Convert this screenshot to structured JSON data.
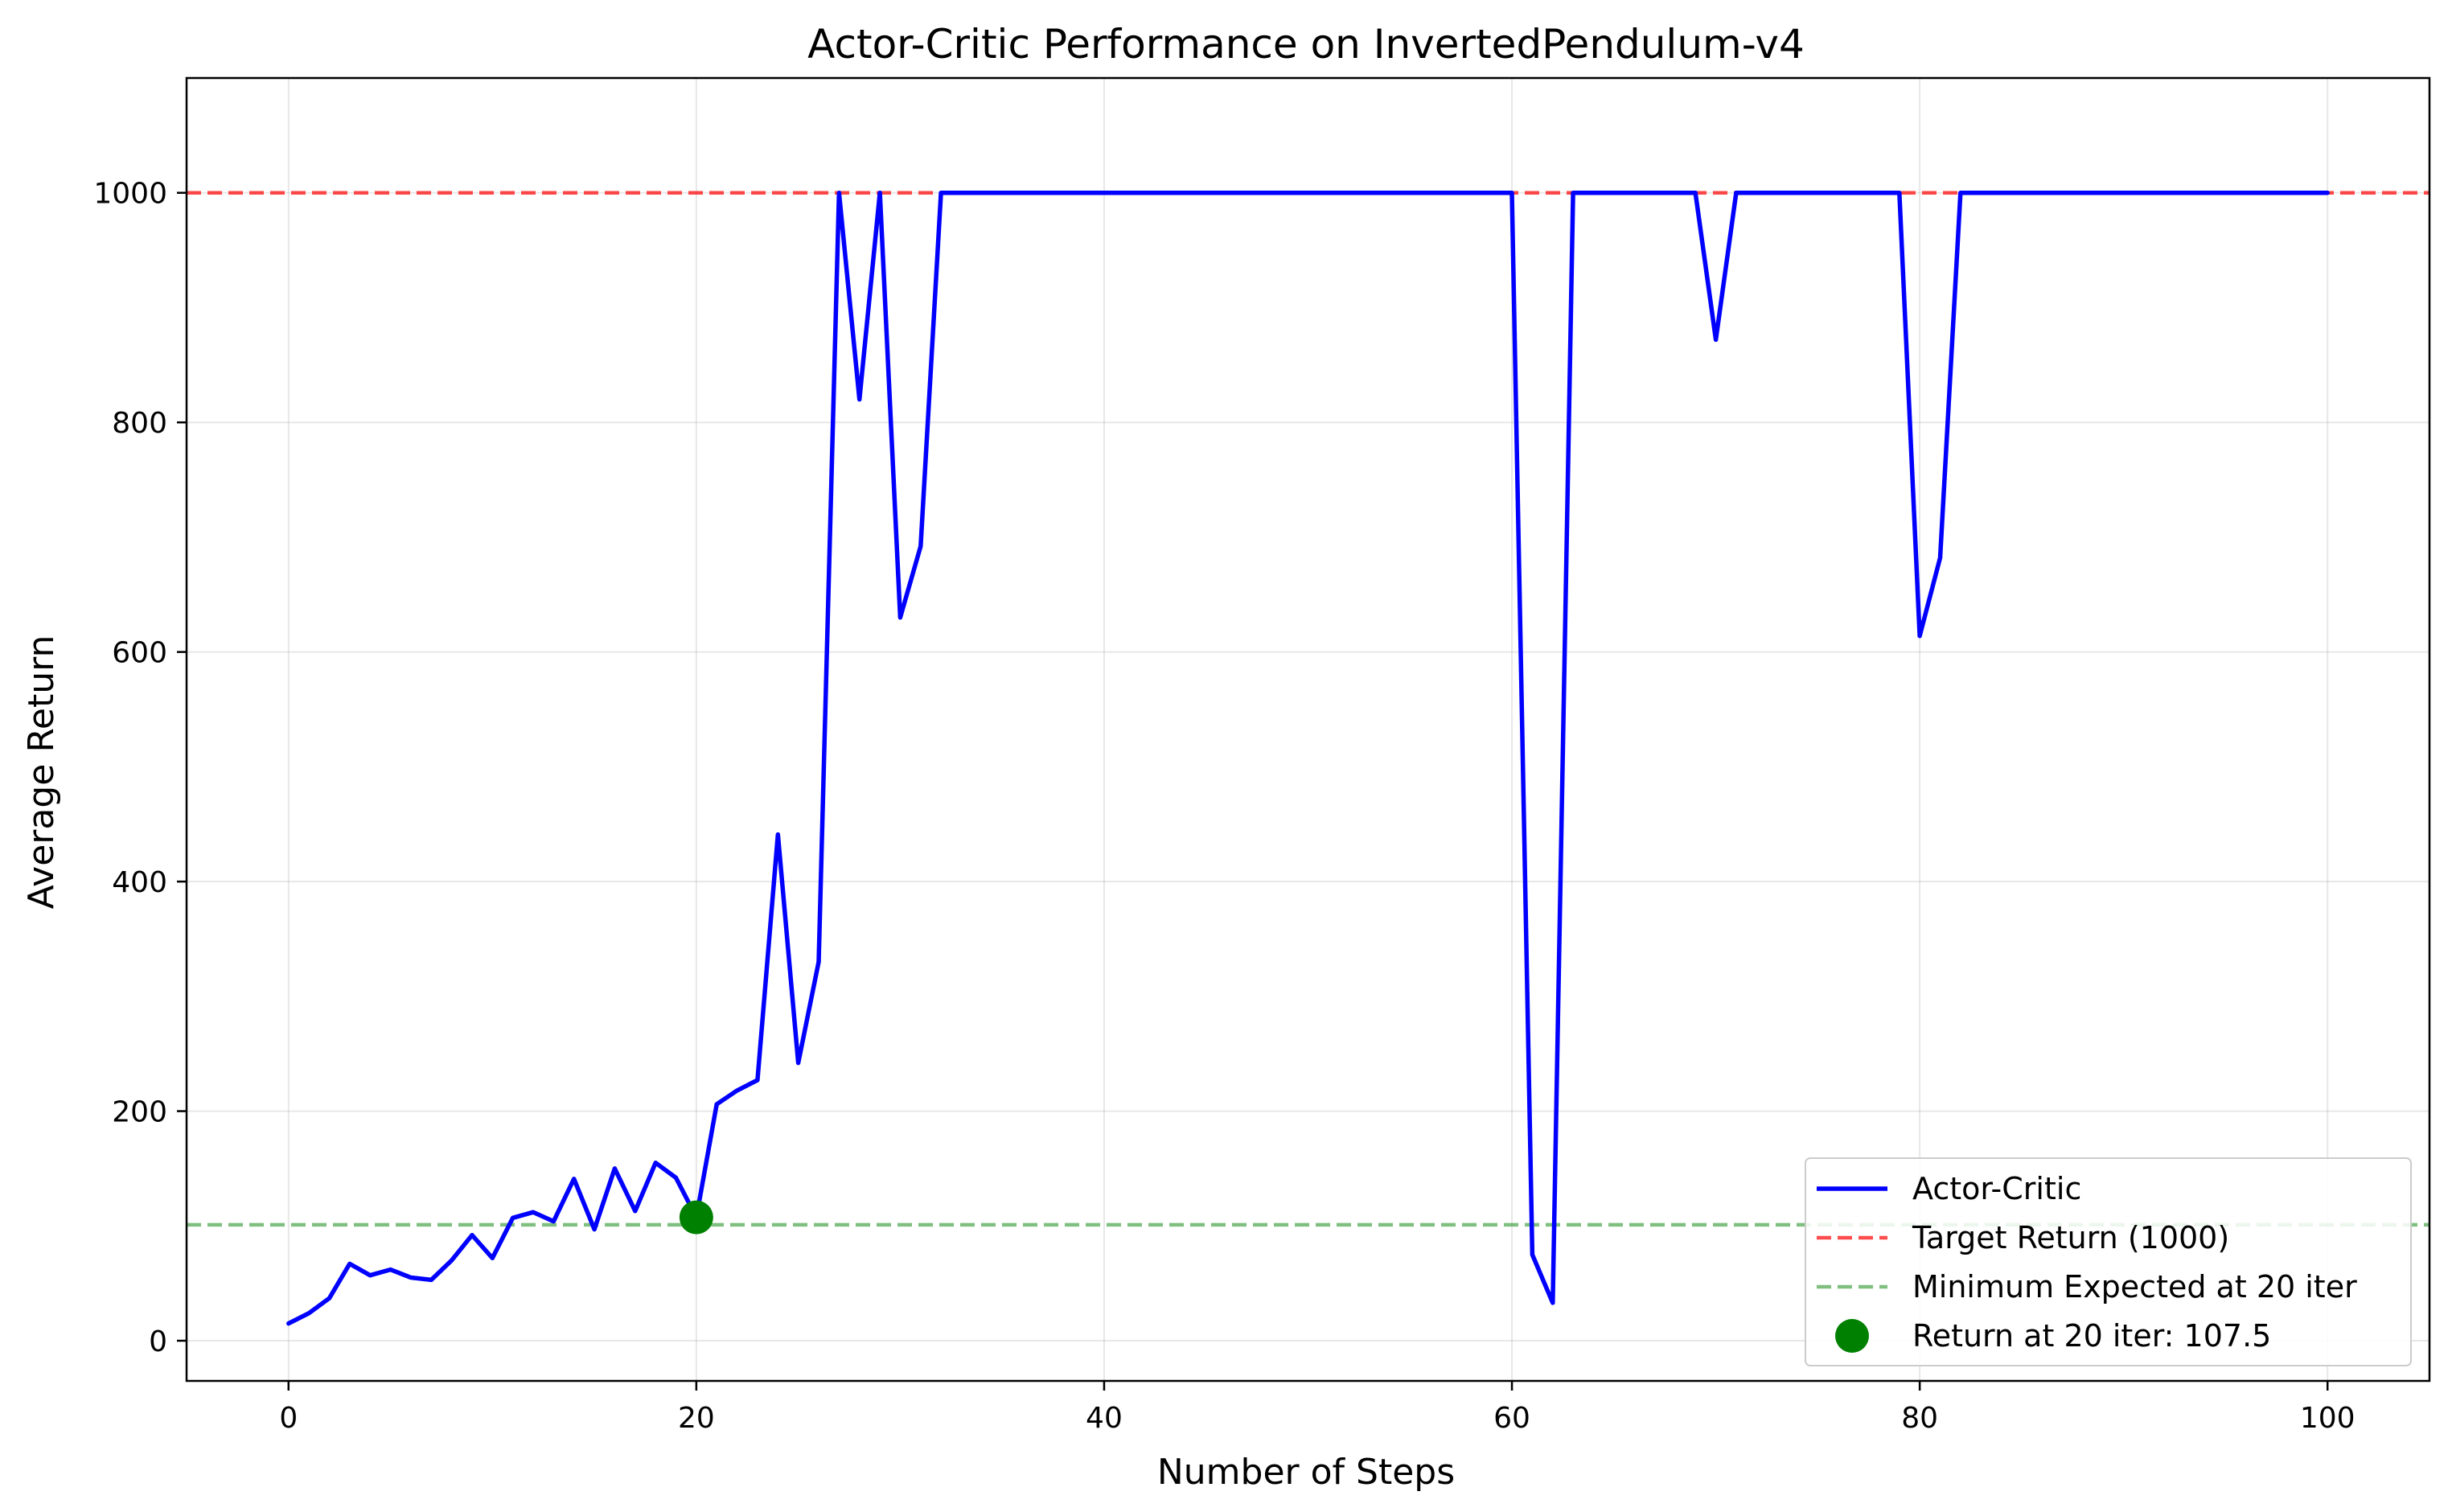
{
  "chart_data": {
    "type": "line",
    "title": "Actor-Critic Performance on InvertedPendulum-v4",
    "xlabel": "Number of Steps",
    "ylabel": "Average Return",
    "xlim": [
      -5,
      105
    ],
    "ylim": [
      -35,
      1100
    ],
    "xticks": [
      0,
      20,
      40,
      60,
      80,
      100
    ],
    "yticks": [
      0,
      200,
      400,
      600,
      800,
      1000
    ],
    "grid": true,
    "legend_position": "lower-right",
    "series": [
      {
        "name": "Actor-Critic",
        "color": "#0000ff",
        "style": "solid",
        "x": [
          0,
          1,
          2,
          3,
          4,
          5,
          6,
          7,
          8,
          9,
          10,
          11,
          12,
          13,
          14,
          15,
          16,
          17,
          18,
          19,
          20,
          21,
          22,
          23,
          24,
          25,
          26,
          27,
          28,
          29,
          30,
          31,
          32,
          33,
          34,
          35,
          36,
          37,
          38,
          39,
          40,
          41,
          42,
          43,
          44,
          45,
          46,
          47,
          48,
          49,
          50,
          51,
          52,
          53,
          54,
          55,
          56,
          57,
          58,
          59,
          60,
          61,
          62,
          63,
          64,
          65,
          66,
          67,
          68,
          69,
          70,
          71,
          72,
          73,
          74,
          75,
          76,
          77,
          78,
          79,
          80,
          81,
          82,
          83,
          84,
          85,
          86,
          87,
          88,
          89,
          90,
          91,
          92,
          93,
          94,
          95,
          96,
          97,
          98,
          99,
          100
        ],
        "y": [
          15,
          24,
          37,
          67,
          57,
          62,
          55,
          53,
          70,
          92,
          72,
          107,
          112,
          104,
          141,
          97,
          150,
          113,
          155,
          142,
          107.5,
          206,
          218,
          227,
          441,
          242,
          330,
          1000,
          820,
          1000,
          630,
          692,
          1000,
          1000,
          1000,
          1000,
          1000,
          1000,
          1000,
          1000,
          1000,
          1000,
          1000,
          1000,
          1000,
          1000,
          1000,
          1000,
          1000,
          1000,
          1000,
          1000,
          1000,
          1000,
          1000,
          1000,
          1000,
          1000,
          1000,
          1000,
          1000,
          75,
          33,
          1000,
          1000,
          1000,
          1000,
          1000,
          1000,
          1000,
          872,
          1000,
          1000,
          1000,
          1000,
          1000,
          1000,
          1000,
          1000,
          1000,
          614,
          682,
          1000,
          1000,
          1000,
          1000,
          1000,
          1000,
          1000,
          1000,
          1000,
          1000,
          1000,
          1000,
          1000,
          1000,
          1000,
          1000,
          1000,
          1000,
          1000
        ]
      }
    ],
    "reference_lines": [
      {
        "name": "Target Return (1000)",
        "y": 1000,
        "color": "#ff0000",
        "style": "dashed",
        "opacity": 0.7
      },
      {
        "name": "Minimum Expected at 20 iter",
        "y": 101,
        "color": "#008000",
        "style": "dashed",
        "opacity": 0.5
      }
    ],
    "markers": [
      {
        "name": "Return at 20 iter: 107.5",
        "x": 20,
        "y": 107.5,
        "color": "#008000"
      }
    ]
  }
}
